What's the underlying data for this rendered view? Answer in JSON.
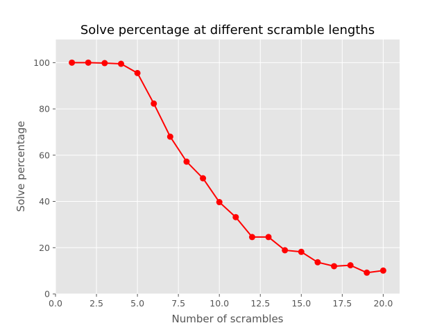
{
  "chart_data": {
    "type": "line",
    "title": "Solve percentage at different scramble lengths",
    "xlabel": "Number of scrambles",
    "ylabel": "Solve percentage",
    "xlim": [
      0,
      21
    ],
    "ylim": [
      0,
      110
    ],
    "x_ticks": [
      0,
      2.5,
      5,
      7.5,
      10,
      12.5,
      15,
      17.5,
      20
    ],
    "x_tick_labels": [
      "0.0",
      "2.5",
      "5.0",
      "7.5",
      "10.0",
      "12.5",
      "15.0",
      "17.5",
      "20.0"
    ],
    "y_ticks": [
      0,
      20,
      40,
      60,
      80,
      100
    ],
    "y_tick_labels": [
      "0",
      "20",
      "40",
      "60",
      "80",
      "100"
    ],
    "grid": true,
    "series": [
      {
        "color": "#ff0000",
        "marker": "circle",
        "x": [
          1,
          2,
          3,
          4,
          5,
          6,
          7,
          8,
          9,
          10,
          11,
          12,
          13,
          14,
          15,
          16,
          17,
          18,
          19,
          20
        ],
        "y": [
          100,
          100,
          99.8,
          99.5,
          95.5,
          82.3,
          68,
          57.2,
          50,
          39.7,
          33.2,
          24.6,
          24.6,
          18.9,
          18.2,
          13.7,
          12,
          12.4,
          9.2,
          10.1
        ]
      }
    ],
    "colors": {
      "plot_background": "#e5e5e5",
      "grid": "#ffffff",
      "text": "#555555"
    }
  }
}
